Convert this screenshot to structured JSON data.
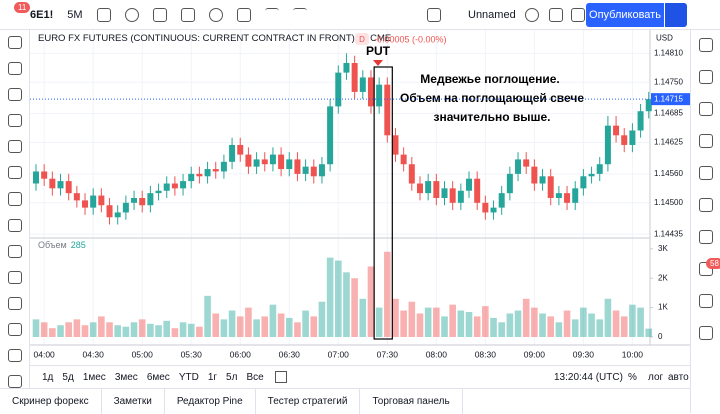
{
  "toolbar": {
    "symbol": "6E1!",
    "interval": "5М",
    "layout_name": "Unnamed",
    "publish": "Опубликовать",
    "badge": "11"
  },
  "chart_data": {
    "type": "candlestick",
    "title": "EURO FX FUTURES (CONTINUOUS: CURRENT CONTRACT IN FRONT)",
    "interval": "5",
    "exchange": "CME",
    "flag": "D",
    "change": "-0.00005 (-0.00%)",
    "currency": "USD",
    "open": [
      1.1454,
      1.14565,
      1.1455,
      1.1453,
      1.14545,
      1.1452,
      1.14505,
      1.1449,
      1.14515,
      1.14495,
      1.1447,
      1.1448,
      1.145,
      1.1451,
      1.14495,
      1.1452,
      1.14525,
      1.1454,
      1.1453,
      1.14545,
      1.1456,
      1.14555,
      1.1457,
      1.14565,
      1.14585,
      1.1462,
      1.146,
      1.14575,
      1.1459,
      1.1458,
      1.146,
      1.1457,
      1.1459,
      1.1456,
      1.14575,
      1.14555,
      1.1458,
      1.147,
      1.1477,
      1.1479,
      1.1473,
      1.1476,
      1.147,
      1.14745,
      1.1464,
      1.146,
      1.1458,
      1.1454,
      1.1452,
      1.14545,
      1.1451,
      1.1453,
      1.145,
      1.14525,
      1.1455,
      1.145,
      1.1448,
      1.1449,
      1.1452,
      1.1456,
      1.1459,
      1.14575,
      1.1454,
      1.14555,
      1.1451,
      1.1452,
      1.145,
      1.1453,
      1.14555,
      1.1456,
      1.1458,
      1.1466,
      1.1464,
      1.1462,
      1.1465,
      1.1469
    ],
    "high": [
      1.1458,
      1.1458,
      1.14565,
      1.1456,
      1.1456,
      1.14535,
      1.1452,
      1.1453,
      1.1453,
      1.1451,
      1.14495,
      1.14515,
      1.14525,
      1.14525,
      1.14535,
      1.1454,
      1.14555,
      1.14555,
      1.1456,
      1.14575,
      1.14575,
      1.14585,
      1.14585,
      1.146,
      1.14635,
      1.14635,
      1.14615,
      1.14605,
      1.14605,
      1.14615,
      1.14615,
      1.14605,
      1.14605,
      1.1459,
      1.1459,
      1.14595,
      1.14715,
      1.14785,
      1.1481,
      1.14805,
      1.14775,
      1.14775,
      1.1476,
      1.1476,
      1.14655,
      1.14615,
      1.14595,
      1.14555,
      1.1456,
      1.1456,
      1.14545,
      1.14545,
      1.1454,
      1.14565,
      1.14565,
      1.14515,
      1.14505,
      1.14535,
      1.14575,
      1.14605,
      1.14605,
      1.1459,
      1.1457,
      1.1457,
      1.14535,
      1.14535,
      1.14545,
      1.1457,
      1.14575,
      1.14595,
      1.1468,
      1.1468,
      1.14655,
      1.14665,
      1.14705,
      1.1473
    ],
    "low": [
      1.14525,
      1.14535,
      1.14515,
      1.14515,
      1.14505,
      1.1449,
      1.14475,
      1.14475,
      1.1448,
      1.14455,
      1.14455,
      1.14465,
      1.14485,
      1.1448,
      1.1448,
      1.14505,
      1.1451,
      1.14515,
      1.14515,
      1.1453,
      1.1454,
      1.1454,
      1.1455,
      1.1455,
      1.1457,
      1.14585,
      1.1456,
      1.1456,
      1.14565,
      1.14565,
      1.14555,
      1.14555,
      1.14545,
      1.14545,
      1.1454,
      1.1454,
      1.14565,
      1.14685,
      1.14755,
      1.14715,
      1.14715,
      1.14685,
      1.14685,
      1.14625,
      1.14585,
      1.14565,
      1.14525,
      1.14505,
      1.14505,
      1.14495,
      1.14495,
      1.14485,
      1.14485,
      1.1451,
      1.14485,
      1.14465,
      1.14465,
      1.14475,
      1.14505,
      1.14545,
      1.1456,
      1.14525,
      1.14525,
      1.14495,
      1.14495,
      1.14485,
      1.14485,
      1.14515,
      1.1454,
      1.14545,
      1.14565,
      1.14625,
      1.14605,
      1.14605,
      1.14635,
      1.14675
    ],
    "close": [
      1.14565,
      1.1455,
      1.1453,
      1.14545,
      1.1452,
      1.14505,
      1.1449,
      1.14515,
      1.14495,
      1.1447,
      1.1448,
      1.145,
      1.1451,
      1.14495,
      1.1452,
      1.14525,
      1.1454,
      1.1453,
      1.14545,
      1.1456,
      1.14555,
      1.1457,
      1.14565,
      1.14585,
      1.1462,
      1.146,
      1.14575,
      1.1459,
      1.1458,
      1.146,
      1.1457,
      1.1459,
      1.1456,
      1.14575,
      1.14555,
      1.1458,
      1.147,
      1.1477,
      1.1479,
      1.1473,
      1.1476,
      1.147,
      1.14745,
      1.1464,
      1.146,
      1.1458,
      1.1454,
      1.1452,
      1.14545,
      1.1451,
      1.1453,
      1.145,
      1.14525,
      1.1455,
      1.145,
      1.1448,
      1.1449,
      1.1452,
      1.1456,
      1.1459,
      1.14575,
      1.1454,
      1.14555,
      1.1451,
      1.1452,
      1.145,
      1.1453,
      1.14555,
      1.1456,
      1.1458,
      1.1466,
      1.1464,
      1.1462,
      1.1465,
      1.1469,
      1.14715
    ],
    "up_color": "#26a69a",
    "down_color": "#ef5350",
    "ylim": [
      1.14427,
      1.14875
    ],
    "yticks": [
      {
        "value": 1.1481,
        "label": "1.14810"
      },
      {
        "value": 1.1475,
        "label": "1.14750"
      },
      1.14685,
      1.14625,
      {
        "value": 1.1456,
        "label": "1.14560"
      },
      {
        "value": 1.145,
        "label": "1.14500"
      },
      1.14435
    ],
    "last_price": 1.14715,
    "xticks": [
      "04:00",
      "04:30",
      "05:00",
      "05:30",
      "06:00",
      "06:30",
      "07:00",
      "07:30",
      "08:00",
      "08:30",
      "09:00",
      "09:30",
      "10:00"
    ],
    "volume": {
      "label": "Объем",
      "values": [
        600,
        500,
        300,
        400,
        500,
        600,
        400,
        500,
        700,
        500,
        400,
        350,
        500,
        600,
        450,
        400,
        550,
        300,
        500,
        450,
        350,
        1400,
        800,
        600,
        900,
        700,
        1000,
        600,
        700,
        1100,
        800,
        650,
        500,
        900,
        700,
        1200,
        2700,
        2600,
        2200,
        2000,
        1300,
        2400,
        1000,
        2900,
        1300,
        900,
        1200,
        800,
        1000,
        1000,
        700,
        1100,
        900,
        850,
        700,
        1050,
        650,
        500,
        800,
        900,
        1300,
        1000,
        800,
        700,
        500,
        900,
        600,
        1000,
        800,
        600,
        1300,
        900,
        700,
        1100,
        1000,
        285
      ],
      "ylim": [
        0,
        3300
      ],
      "yticks": [
        0,
        {
          "value": 1000,
          "label": "1K"
        },
        {
          "value": 2000,
          "label": "2K"
        },
        {
          "value": 3000,
          "label": "3K"
        }
      ]
    },
    "annotations": {
      "signal": "PUT",
      "text": [
        "Медвежье поглощение.",
        "Объем на поглощающей свече",
        "значительно выше."
      ]
    }
  },
  "range_bar": {
    "ranges": [
      "1д",
      "5д",
      "1мес",
      "3мес",
      "6мес",
      "YTD",
      "1г",
      "5л",
      "Все"
    ],
    "clock": "13:20:44 (UTC)",
    "options": [
      "%",
      "лог",
      "авто"
    ]
  },
  "tabs": [
    "Скринер форекс",
    "Заметки",
    "Редактор Pine",
    "Тестер стратегий",
    "Торговая панель"
  ],
  "sidebar_badge": "58"
}
